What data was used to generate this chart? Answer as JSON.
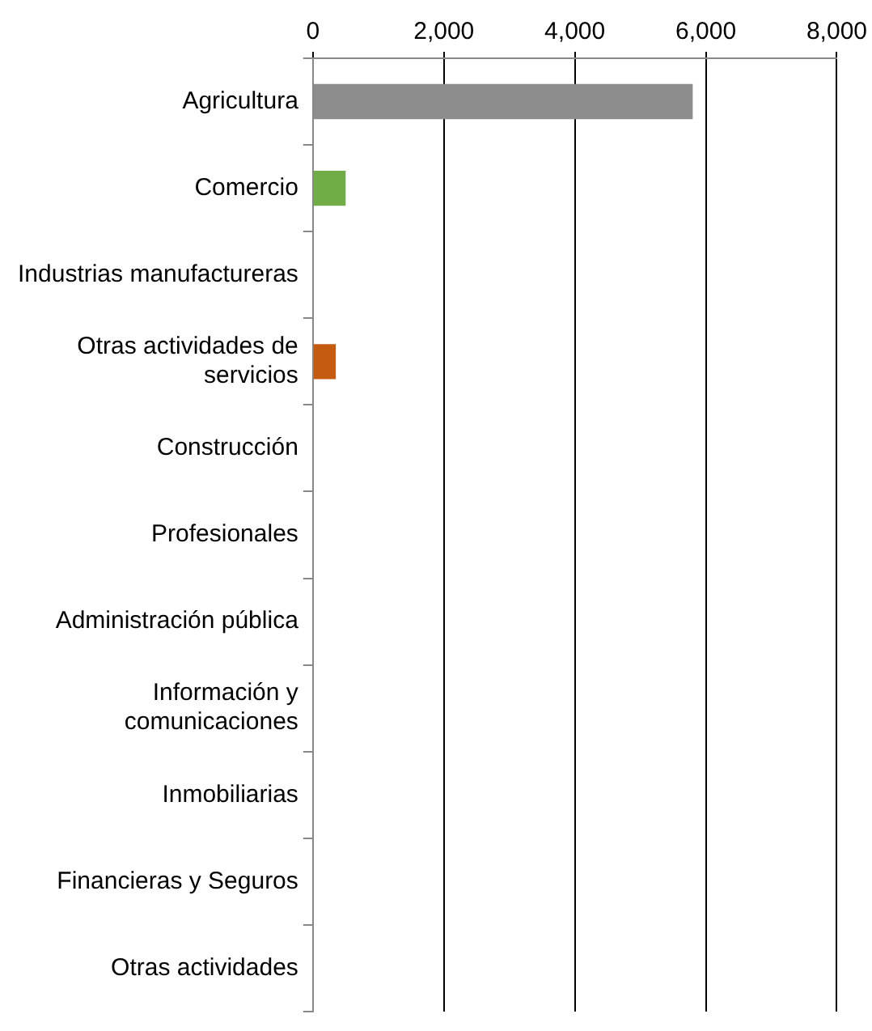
{
  "chart_data": {
    "type": "bar",
    "orientation": "horizontal",
    "categories": [
      "Agricultura",
      "Comercio",
      "Industrias manufactureras",
      "Otras actividades de servicios",
      "Construcción",
      "Profesionales",
      "Administración pública",
      "Información y comunicaciones",
      "Inmobiliarias",
      "Financieras y Seguros",
      "Otras actividades"
    ],
    "values": [
      5800,
      500,
      0,
      350,
      0,
      0,
      0,
      0,
      0,
      0,
      0
    ],
    "colors": [
      "#8c8c8c",
      "#70ad47",
      "#8c8c8c",
      "#c55a11",
      "#8c8c8c",
      "#8c8c8c",
      "#8c8c8c",
      "#8c8c8c",
      "#8c8c8c",
      "#8c8c8c",
      "#8c8c8c"
    ],
    "xlim": [
      0,
      8000
    ],
    "xticks": [
      0,
      {
        "value": 2000,
        "label": "2,000"
      },
      {
        "value": 4000,
        "label": "4,000"
      },
      {
        "value": 6000,
        "label": "6,000"
      },
      {
        "value": 8000,
        "label": "8,000"
      }
    ],
    "grid": "x",
    "legend": false
  }
}
